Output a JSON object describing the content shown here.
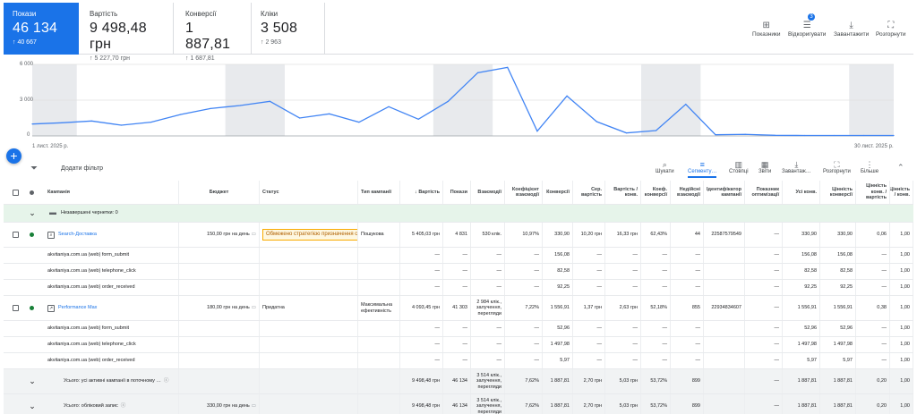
{
  "scorecards": [
    {
      "label": "Покази",
      "value": "46 134",
      "delta": "↑ 40 667",
      "selected": true
    },
    {
      "label": "Вартість",
      "value": "9 498,48 грн",
      "delta": "↑ 5 227,70 грн"
    },
    {
      "label": "Конверсії",
      "value": "1 887,81",
      "delta": "↑ 1 687,81"
    },
    {
      "label": "Кліки",
      "value": "3 508",
      "delta": "↑ 2 963"
    }
  ],
  "top_toolbar": {
    "indicators": "Показники",
    "edit": "Відкоригувати",
    "edit_badge": "3",
    "download": "Завантажити",
    "expand": "Розгорнути"
  },
  "chart_data": {
    "type": "line",
    "yticks": [
      "6 000",
      "3 000",
      "0"
    ],
    "ylim": [
      0,
      6000
    ],
    "x_start_label": "1 лист. 2025 р.",
    "x_end_label": "30 лист. 2025 р.",
    "series_color": "#4285f4",
    "x": [
      1,
      2,
      3,
      4,
      5,
      6,
      7,
      8,
      9,
      10,
      11,
      12,
      13,
      14,
      15,
      16,
      17,
      18,
      19,
      20,
      21,
      22,
      23,
      24,
      25,
      26,
      27,
      28,
      29,
      30
    ],
    "values": [
      1000,
      1100,
      1250,
      900,
      1150,
      1800,
      2300,
      2550,
      2900,
      1500,
      1850,
      1150,
      2450,
      1400,
      2900,
      5300,
      5750,
      400,
      3350,
      1200,
      250,
      450,
      2650,
      100,
      130,
      50,
      40,
      40,
      40,
      40
    ],
    "shaded_weekends": [
      [
        1,
        2
      ],
      [
        8,
        9
      ],
      [
        15,
        16
      ],
      [
        22,
        23
      ],
      [
        29,
        30
      ]
    ]
  },
  "filter_bar": {
    "add_filter": "Додати фільтр",
    "tools": [
      {
        "label": "Шукати",
        "icon": "search-icon"
      },
      {
        "label": "Сегменту…",
        "icon": "segment-icon",
        "active": true
      },
      {
        "label": "Стовпці",
        "icon": "columns-icon"
      },
      {
        "label": "Звіти",
        "icon": "reports-icon"
      },
      {
        "label": "Завантаж…",
        "icon": "download-icon"
      },
      {
        "label": "Розгорнути",
        "icon": "expand-icon"
      },
      {
        "label": "Більше",
        "icon": "more-icon"
      }
    ]
  },
  "table": {
    "headers": [
      "Кампанія",
      "Бюджет",
      "Статус",
      "Тип кампанії",
      "↓ Вартість",
      "Покази",
      "Взаємодії",
      "Коефіцієнт взаємодії",
      "Конверсії",
      "Сер. вартість",
      "Вартість / конв.",
      "Коеф. конверсії",
      "Недійсні взаємодії",
      "Ідентифікатор кампанії",
      "Показник оптимізації",
      "Усі конв.",
      "Цінність конверсії",
      "Цінність конв. / вартість",
      "Цінність / конв."
    ],
    "drafts_label": "Незавершені чернетки: 0",
    "rows": [
      {
        "kind": "campaign",
        "cells": [
          "Search-Доставка",
          "150,00 грн на день",
          "Обмежено стратегією призначення ставок",
          "Пошукова",
          "5 405,03 грн",
          "4 831",
          "530 клік.",
          "10,97%",
          "330,90",
          "10,20 грн",
          "16,33 грн",
          "62,43%",
          "44",
          "22587579549",
          "—",
          "330,90",
          "330,90",
          "0,06",
          "1,00"
        ]
      },
      {
        "kind": "sub",
        "cells": [
          "akvitaniya.com.ua (web) form_submit",
          "",
          "",
          "",
          "—",
          "—",
          "—",
          "—",
          "156,08",
          "—",
          "—",
          "—",
          "—",
          "",
          "—",
          "156,08",
          "156,08",
          "—",
          "1,00"
        ]
      },
      {
        "kind": "sub",
        "cells": [
          "akvitaniya.com.ua (web) telephone_click",
          "",
          "",
          "",
          "—",
          "—",
          "—",
          "—",
          "82,58",
          "—",
          "—",
          "—",
          "—",
          "",
          "—",
          "82,58",
          "82,58",
          "—",
          "1,00"
        ]
      },
      {
        "kind": "sub",
        "cells": [
          "akvitaniya.com.ua (web) order_received",
          "",
          "",
          "",
          "—",
          "—",
          "—",
          "—",
          "92,25",
          "—",
          "—",
          "—",
          "—",
          "",
          "—",
          "92,25",
          "92,25",
          "—",
          "1,00"
        ]
      },
      {
        "kind": "campaign",
        "cells": [
          "Performance Max",
          "180,00 грн на день",
          "Придатна",
          "Максимальна ефективність",
          "4 093,45 грн",
          "41 303",
          "2 984 клік., залучення, перегляди",
          "7,22%",
          "1 556,91",
          "1,37 грн",
          "2,63 грн",
          "52,18%",
          "855",
          "22934834607",
          "—",
          "1 556,91",
          "1 556,91",
          "0,38",
          "1,00"
        ]
      },
      {
        "kind": "sub",
        "cells": [
          "akvitaniya.com.ua (web) form_submit",
          "",
          "",
          "",
          "—",
          "—",
          "—",
          "—",
          "52,96",
          "—",
          "—",
          "—",
          "—",
          "",
          "—",
          "52,96",
          "52,96",
          "—",
          "1,00"
        ]
      },
      {
        "kind": "sub",
        "cells": [
          "akvitaniya.com.ua (web) telephone_click",
          "",
          "",
          "",
          "—",
          "—",
          "—",
          "—",
          "1 497,98",
          "—",
          "—",
          "—",
          "—",
          "",
          "—",
          "1 497,98",
          "1 497,98",
          "—",
          "1,00"
        ]
      },
      {
        "kind": "sub",
        "cells": [
          "akvitaniya.com.ua (web) order_received",
          "",
          "",
          "",
          "—",
          "—",
          "—",
          "—",
          "5,97",
          "—",
          "—",
          "—",
          "—",
          "",
          "—",
          "5,97",
          "5,97",
          "—",
          "1,00"
        ]
      },
      {
        "kind": "total",
        "cells": [
          "Усього: усі активні кампанії в поточному …",
          "",
          "",
          "",
          "9 498,48 грн",
          "46 134",
          "3 514 клік., залучення, перегляди",
          "7,62%",
          "1 887,81",
          "2,70 грн",
          "5,03 грн",
          "53,72%",
          "899",
          "",
          "—",
          "1 887,81",
          "1 887,81",
          "0,20",
          "1,00"
        ]
      },
      {
        "kind": "total",
        "cells": [
          "Усього: обліковий запис",
          "330,00 грн на день",
          "",
          "",
          "9 498,48 грн",
          "46 134",
          "3 514 клік., залучення, перегляди",
          "7,62%",
          "1 887,81",
          "2,70 грн",
          "5,03 грн",
          "53,72%",
          "899",
          "",
          "—",
          "1 887,81",
          "1 887,81",
          "0,20",
          "1,00"
        ]
      }
    ]
  }
}
